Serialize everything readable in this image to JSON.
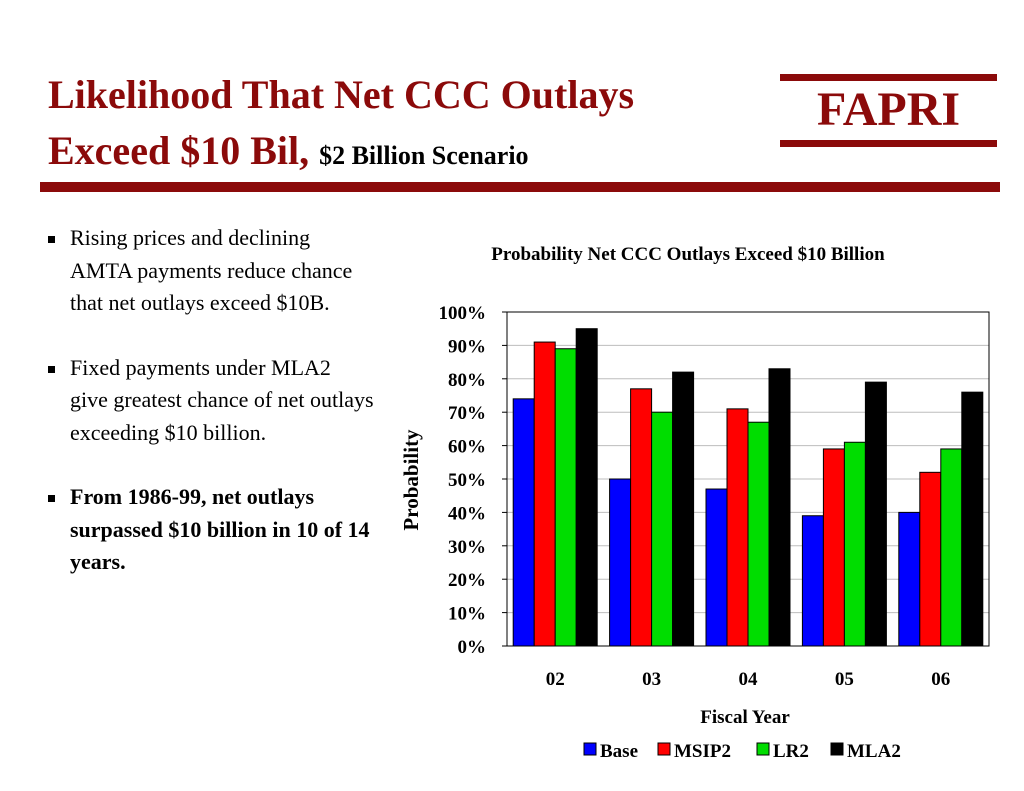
{
  "slide": {
    "title_line1": "Likelihood That Net CCC Outlays",
    "title_line2": "Exceed $10 Bil,",
    "subtitle": "$2 Billion Scenario",
    "logo": "FAPRI",
    "accent_color": "#8b0a0a"
  },
  "bullets": [
    {
      "text": "Rising prices and declining AMTA payments reduce chance that net outlays exceed $10B.",
      "bold": false
    },
    {
      "text": "Fixed payments under MLA2 give greatest chance of net outlays exceeding $10 billion.",
      "bold": false
    },
    {
      "text": "From 1986-99, net outlays surpassed $10 billion in 10 of 14 years.",
      "bold": true
    }
  ],
  "chart_data": {
    "type": "bar",
    "title": "Probability Net CCC Outlays Exceed $10 Billion",
    "xlabel": "Fiscal Year",
    "ylabel": "Probability",
    "categories": [
      "02",
      "03",
      "04",
      "05",
      "06"
    ],
    "series": [
      {
        "name": "Base",
        "color": "#0000ff",
        "values": [
          74,
          50,
          47,
          39,
          40
        ]
      },
      {
        "name": "MSIP2",
        "color": "#ff0000",
        "values": [
          91,
          77,
          71,
          59,
          52
        ]
      },
      {
        "name": "LR2",
        "color": "#00dd00",
        "values": [
          89,
          70,
          67,
          61,
          59
        ]
      },
      {
        "name": "MLA2",
        "color": "#000000",
        "values": [
          95,
          82,
          83,
          79,
          76
        ]
      }
    ],
    "ylim": [
      0,
      100
    ],
    "yticks": [
      "0%",
      "10%",
      "20%",
      "30%",
      "40%",
      "50%",
      "60%",
      "70%",
      "80%",
      "90%",
      "100%"
    ],
    "grid": true,
    "legend_position": "bottom"
  }
}
